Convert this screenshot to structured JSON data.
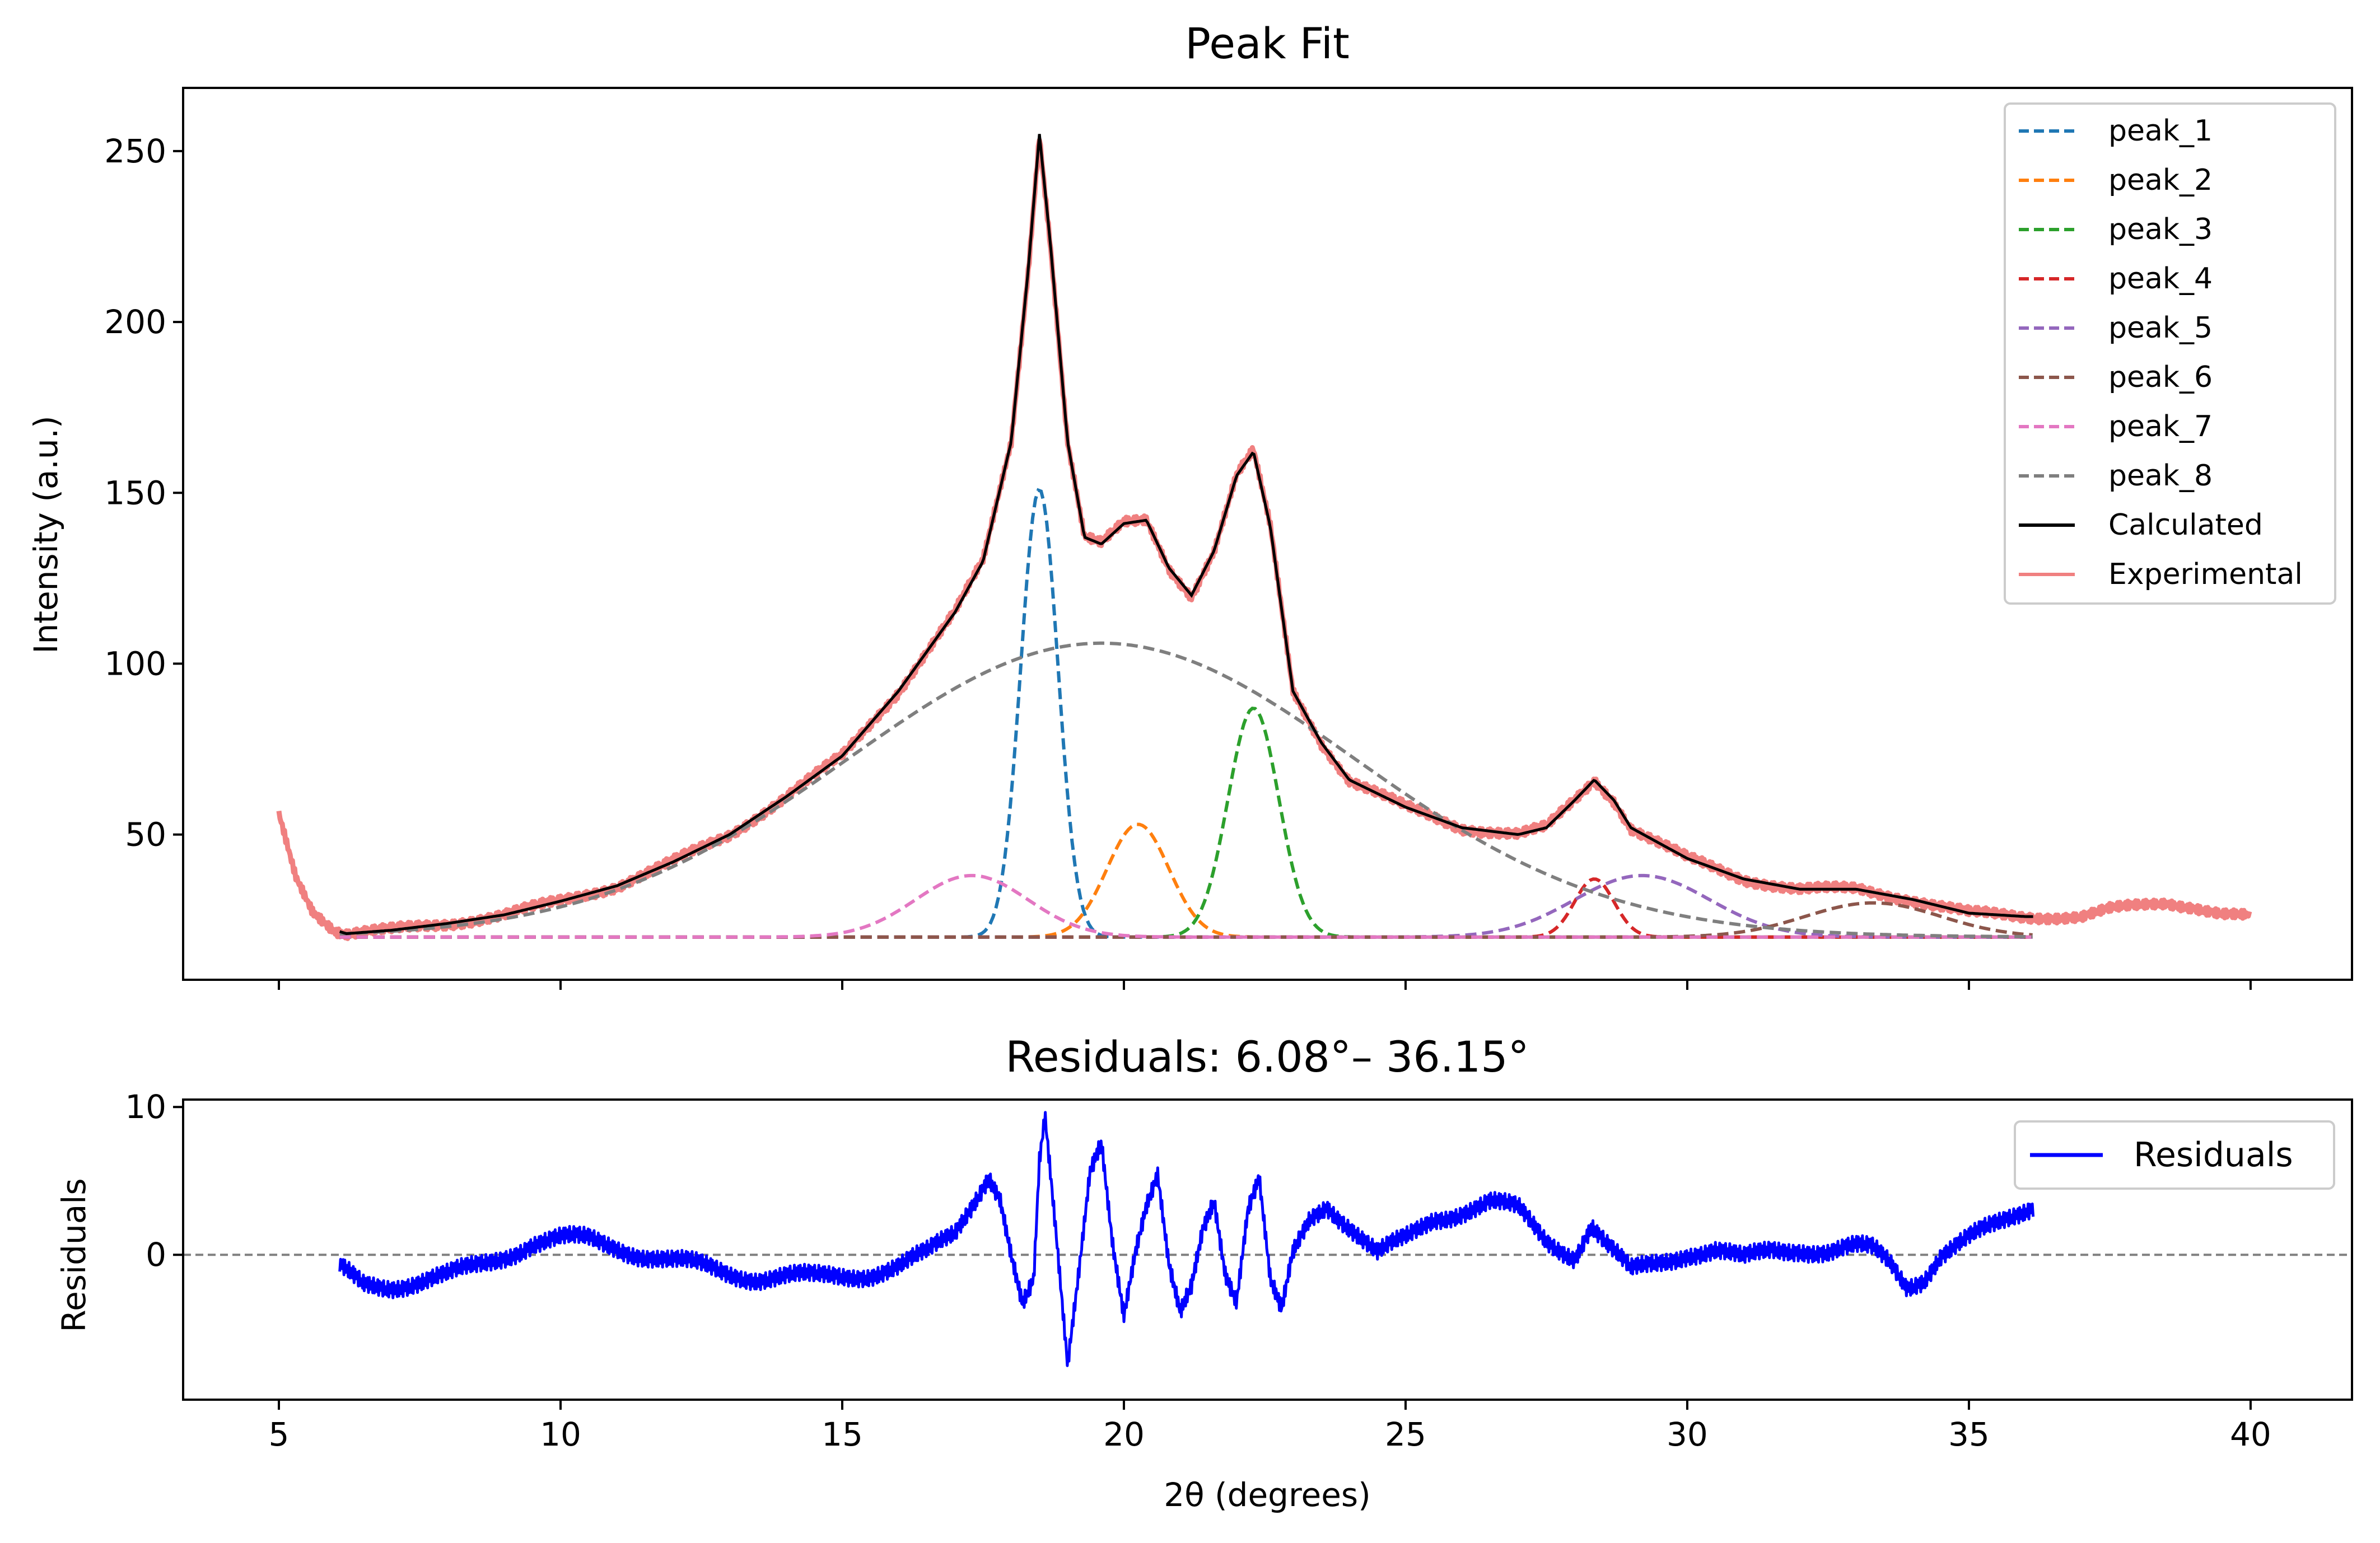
{
  "chart_data": [
    {
      "type": "line",
      "title": "Peak Fit",
      "xlabel": "",
      "ylabel": "Intensity (a.u.)",
      "xlim": [
        3.3,
        41.8
      ],
      "ylim": [
        7.5,
        268.5
      ],
      "xticks": [
        5,
        10,
        15,
        20,
        25,
        30,
        35,
        40
      ],
      "yticks": [
        50,
        100,
        150,
        200,
        250
      ],
      "grid": false,
      "legend_position": "top-right",
      "legend": [
        "peak_1",
        "peak_2",
        "peak_3",
        "peak_4",
        "peak_5",
        "peak_6",
        "peak_7",
        "peak_8",
        "Calculated",
        "Experimental"
      ],
      "baseline": 20,
      "series": [
        {
          "name": "peak_1",
          "style": "dashed",
          "color": "#1f77b4",
          "center": 18.5,
          "height": 131,
          "sigma": 0.33,
          "x_range": [
            6.08,
            36.15
          ]
        },
        {
          "name": "peak_2",
          "style": "dashed",
          "color": "#ff7f0e",
          "center": 20.25,
          "height": 33,
          "sigma": 0.55,
          "x_range": [
            6.08,
            36.15
          ]
        },
        {
          "name": "peak_3",
          "style": "dashed",
          "color": "#2ca02c",
          "center": 22.3,
          "height": 67,
          "sigma": 0.45,
          "x_range": [
            6.08,
            36.15
          ]
        },
        {
          "name": "peak_4",
          "style": "dashed",
          "color": "#d62728",
          "center": 28.35,
          "height": 17,
          "sigma": 0.35,
          "x_range": [
            6.08,
            36.15
          ]
        },
        {
          "name": "peak_5",
          "style": "dashed",
          "color": "#9467bd",
          "center": 29.2,
          "height": 18,
          "sigma": 1.2,
          "x_range": [
            6.08,
            36.15
          ]
        },
        {
          "name": "peak_6",
          "style": "dashed",
          "color": "#8c564b",
          "center": 33.3,
          "height": 10,
          "sigma": 1.2,
          "x_range": [
            6.08,
            36.15
          ]
        },
        {
          "name": "peak_7",
          "style": "dashed",
          "color": "#e377c2",
          "center": 17.3,
          "height": 18,
          "sigma": 1.0,
          "x_range": [
            6.08,
            36.15
          ]
        },
        {
          "name": "peak_8",
          "style": "dashed",
          "color": "#7f7f7f",
          "center": 19.6,
          "height": 86,
          "sigma": 4.5,
          "x_range": [
            6.08,
            36.15
          ]
        },
        {
          "name": "Calculated",
          "style": "solid",
          "color": "#000000",
          "x_range": [
            6.08,
            36.15
          ]
        },
        {
          "name": "Experimental",
          "style": "solid",
          "color": "#f08080",
          "x": [
            5.0,
            5.3,
            5.6,
            6.0,
            6.2,
            7.0,
            8.0,
            9.0,
            10.0,
            11.0,
            12.0,
            13.0,
            14.0,
            15.0,
            16.0,
            17.0,
            17.5,
            18.0,
            18.3,
            18.5,
            18.7,
            19.0,
            19.3,
            19.6,
            20.0,
            20.4,
            20.8,
            21.2,
            21.6,
            22.0,
            22.3,
            22.6,
            23.0,
            23.5,
            24.0,
            25.0,
            26.0,
            27.0,
            27.5,
            28.0,
            28.35,
            28.7,
            29.0,
            30.0,
            31.0,
            32.0,
            33.0,
            34.0,
            35.0,
            36.0,
            37.0,
            37.5,
            38.0,
            38.5,
            39.0,
            39.5,
            40.0
          ],
          "y": [
            56,
            38,
            28,
            22,
            21,
            22,
            24,
            26.5,
            30.5,
            35,
            42,
            50,
            61,
            73,
            92,
            115,
            130,
            165,
            215,
            255,
            222,
            165,
            137,
            135,
            141,
            142,
            128,
            120,
            133,
            155,
            162,
            140,
            92,
            77,
            66,
            58,
            52,
            50,
            52,
            60,
            66,
            60,
            52,
            43,
            37,
            34,
            34,
            31,
            27,
            26,
            26,
            28,
            29,
            30,
            29,
            27,
            26
          ]
        }
      ]
    },
    {
      "type": "line",
      "title": "Residuals: 6.08°– 36.15°",
      "xlabel": "2θ (degrees)",
      "ylabel": "Residuals",
      "xlim": [
        3.3,
        41.8
      ],
      "ylim": [
        -9.8,
        10.5
      ],
      "xticks": [
        5,
        10,
        15,
        20,
        25,
        30,
        35,
        40
      ],
      "yticks": [
        0,
        10
      ],
      "reference_line": 0,
      "grid": false,
      "legend_position": "top-right",
      "legend": [
        "Residuals"
      ],
      "series": [
        {
          "name": "Residuals",
          "color": "#0000ff",
          "x": [
            6.08,
            6.5,
            7.0,
            7.5,
            8.0,
            8.5,
            9.0,
            9.5,
            10.0,
            10.5,
            11.0,
            11.5,
            12.0,
            12.5,
            13.0,
            13.5,
            14.0,
            14.5,
            15.0,
            15.5,
            16.0,
            16.5,
            17.0,
            17.3,
            17.6,
            17.8,
            18.0,
            18.2,
            18.4,
            18.5,
            18.6,
            18.8,
            19.0,
            19.2,
            19.4,
            19.6,
            19.8,
            20.0,
            20.2,
            20.4,
            20.6,
            20.8,
            21.0,
            21.2,
            21.4,
            21.6,
            21.8,
            22.0,
            22.2,
            22.4,
            22.6,
            22.8,
            23.0,
            23.3,
            23.6,
            24.0,
            24.5,
            25.0,
            25.5,
            26.0,
            26.5,
            27.0,
            27.5,
            28.0,
            28.3,
            28.6,
            29.0,
            29.5,
            30.0,
            30.5,
            31.0,
            31.5,
            32.0,
            32.5,
            33.0,
            33.3,
            33.6,
            33.9,
            34.2,
            34.5,
            35.0,
            35.5,
            36.15
          ],
          "y": [
            -1,
            -2,
            -2,
            -1.8,
            -1.5,
            -0.8,
            0,
            0.8,
            1,
            1,
            0.6,
            0,
            -0.5,
            -0.8,
            -1.2,
            -1.5,
            -1.5,
            -1.6,
            -1.4,
            -1.2,
            -0.8,
            0,
            1.5,
            3.5,
            5.5,
            4,
            0,
            -3.5,
            -2,
            6,
            9,
            1,
            -7.5,
            -1,
            6,
            8,
            1,
            -4,
            0,
            3,
            5,
            -1,
            -4,
            -2,
            2,
            4,
            -1,
            -3,
            3,
            5,
            -2,
            -4,
            0,
            2.5,
            3.5,
            2,
            0,
            1,
            2.5,
            3,
            3.5,
            3,
            1,
            0,
            2,
            0.5,
            -1.2,
            -0.5,
            0.2,
            0.3,
            -0.4,
            0.3,
            0.5,
            0.2,
            0.4,
            0.3,
            -0.5,
            -2,
            -1.5,
            0,
            1,
            2,
            3.5
          ]
        }
      ]
    }
  ]
}
